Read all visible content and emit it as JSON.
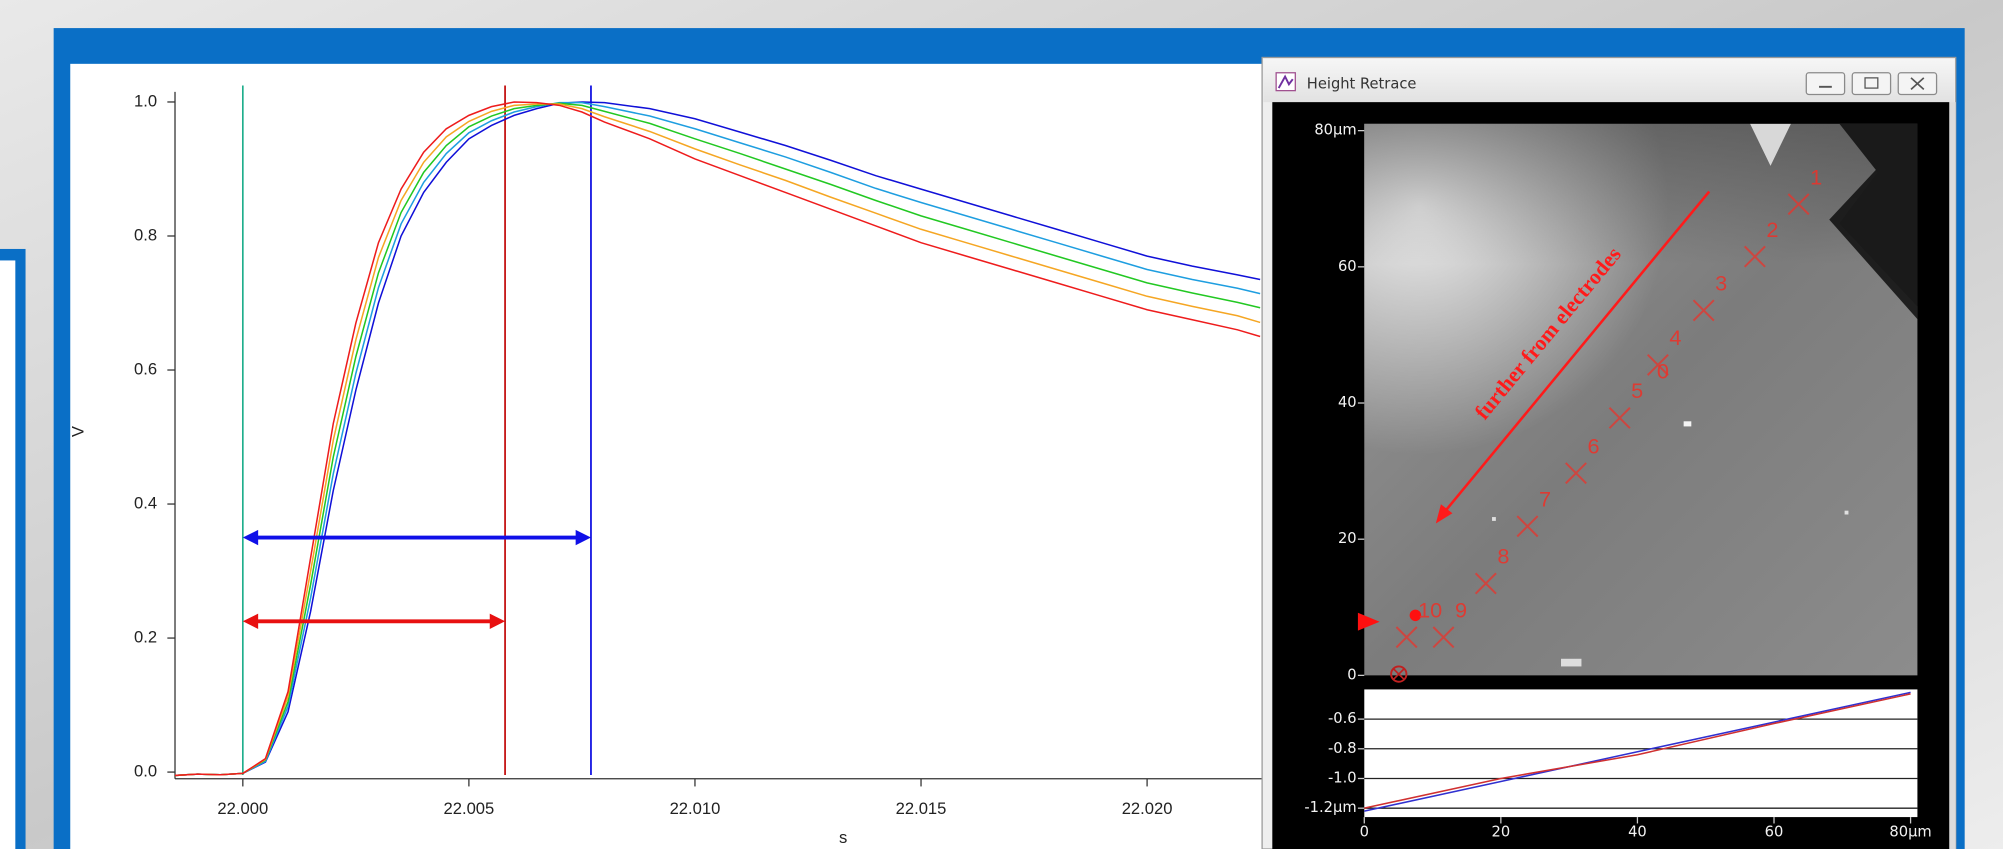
{
  "window": {
    "title": "Height Retrace"
  },
  "chart_data": [
    {
      "type": "line",
      "x_label": "s",
      "y_label": "V",
      "x": [
        21.9985,
        21.999,
        21.9995,
        22.0,
        22.0005,
        22.001,
        22.0015,
        22.002,
        22.0025,
        22.003,
        22.0035,
        22.004,
        22.0045,
        22.005,
        22.0055,
        22.006,
        22.0065,
        22.007,
        22.0075,
        22.008,
        22.009,
        22.01,
        22.011,
        22.012,
        22.013,
        22.014,
        22.015,
        22.016,
        22.017,
        22.018,
        22.019,
        22.02,
        22.021,
        22.022,
        22.0225
      ],
      "series": [
        {
          "color": "#1010d8",
          "values": [
            -0.005,
            -0.003,
            -0.004,
            -0.002,
            0.015,
            0.09,
            0.24,
            0.42,
            0.57,
            0.7,
            0.8,
            0.865,
            0.91,
            0.945,
            0.965,
            0.98,
            0.99,
            0.998,
            1.0,
            0.999,
            0.99,
            0.975,
            0.955,
            0.935,
            0.913,
            0.89,
            0.87,
            0.85,
            0.83,
            0.81,
            0.79,
            0.77,
            0.755,
            0.742,
            0.735
          ]
        },
        {
          "color": "#1e9ee0",
          "values": [
            -0.005,
            -0.003,
            -0.004,
            -0.002,
            0.016,
            0.098,
            0.26,
            0.445,
            0.595,
            0.723,
            0.818,
            0.88,
            0.923,
            0.954,
            0.972,
            0.985,
            0.993,
            0.999,
            0.999,
            0.993,
            0.979,
            0.96,
            0.939,
            0.918,
            0.895,
            0.871,
            0.85,
            0.83,
            0.81,
            0.79,
            0.77,
            0.75,
            0.735,
            0.722,
            0.714
          ]
        },
        {
          "color": "#22c822",
          "values": [
            -0.005,
            -0.003,
            -0.004,
            -0.002,
            0.018,
            0.105,
            0.28,
            0.47,
            0.62,
            0.745,
            0.835,
            0.895,
            0.935,
            0.963,
            0.979,
            0.99,
            0.995,
            0.998,
            0.995,
            0.986,
            0.968,
            0.945,
            0.923,
            0.9,
            0.877,
            0.853,
            0.83,
            0.81,
            0.79,
            0.77,
            0.75,
            0.73,
            0.715,
            0.701,
            0.693
          ]
        },
        {
          "color": "#f5a623",
          "values": [
            -0.005,
            -0.003,
            -0.004,
            -0.002,
            0.019,
            0.113,
            0.3,
            0.495,
            0.645,
            0.768,
            0.853,
            0.91,
            0.948,
            0.971,
            0.986,
            0.995,
            0.997,
            0.997,
            0.99,
            0.978,
            0.956,
            0.93,
            0.906,
            0.883,
            0.858,
            0.834,
            0.81,
            0.79,
            0.77,
            0.75,
            0.73,
            0.71,
            0.695,
            0.681,
            0.671
          ]
        },
        {
          "color": "#ee1c1c",
          "values": [
            -0.005,
            -0.003,
            -0.004,
            -0.002,
            0.02,
            0.12,
            0.32,
            0.52,
            0.67,
            0.79,
            0.87,
            0.925,
            0.96,
            0.98,
            0.993,
            1.0,
            0.999,
            0.995,
            0.985,
            0.97,
            0.945,
            0.915,
            0.89,
            0.865,
            0.84,
            0.815,
            0.79,
            0.77,
            0.75,
            0.73,
            0.71,
            0.69,
            0.675,
            0.66,
            0.65
          ]
        }
      ],
      "vlines": [
        {
          "x": 22.0,
          "color": "#1fae8c"
        },
        {
          "x": 22.0058,
          "color": "#c00000"
        },
        {
          "x": 22.0077,
          "color": "#0000e0"
        }
      ],
      "arrows": [
        {
          "x": [
            22.0,
            22.0077
          ],
          "y": 0.35,
          "color": "#1010e8"
        },
        {
          "x": [
            22.0,
            22.0058
          ],
          "y": 0.225,
          "color": "#e81010"
        }
      ],
      "xlim": [
        21.9985,
        22.0226
      ],
      "ylim": [
        -0.01,
        1.015
      ],
      "xticks": [
        {
          "value": 22.0,
          "label": "22.000"
        },
        22.005,
        {
          "value": 22.01,
          "label": "22.010"
        },
        22.015,
        {
          "value": 22.02,
          "label": "22.020"
        }
      ],
      "yticks": [
        {
          "value": 0,
          "label": "0.0"
        },
        0.2,
        0.4,
        0.6,
        0.8,
        {
          "value": 1,
          "label": "1.0"
        }
      ]
    },
    {
      "type": "scatter",
      "labels": [
        "1",
        "2",
        "3",
        "4",
        "5",
        "6",
        "7",
        "8",
        "9",
        "10"
      ],
      "x": [
        63.6,
        57.2,
        49.7,
        43.0,
        37.4,
        31.0,
        23.9,
        17.8,
        11.6,
        6.2
      ],
      "values": [
        69.2,
        61.5,
        53.6,
        45.6,
        37.8,
        29.7,
        21.9,
        13.5,
        5.6,
        5.6
      ],
      "color": "#e8342c",
      "annotations": [
        {
          "text": "further from electrodes"
        },
        {
          "text": "0"
        }
      ],
      "xlim": [
        0,
        81
      ],
      "ylim": [
        0,
        81
      ],
      "yticks": [
        0,
        20,
        40,
        60,
        {
          "value": 80,
          "label": "80µm"
        }
      ]
    },
    {
      "type": "line",
      "x": [
        0,
        20,
        40,
        60,
        80
      ],
      "series": [
        {
          "color": "#3030d0",
          "values": [
            -1.22,
            -1.02,
            -0.82,
            -0.62,
            -0.42
          ]
        },
        {
          "color": "#d03030",
          "values": [
            -1.2,
            -1.0,
            -0.84,
            -0.63,
            -0.43
          ]
        }
      ],
      "grid": true,
      "xlim": [
        0,
        81
      ],
      "ylim": [
        -1.26,
        -0.4
      ],
      "xticks": [
        0,
        20,
        40,
        60,
        {
          "value": 80,
          "label": "80µm"
        }
      ],
      "yticks": [
        -0.6,
        -0.8,
        {
          "value": -1,
          "label": "-1.0"
        },
        {
          "value": -1.2,
          "label": "-1.2µm"
        }
      ]
    }
  ]
}
